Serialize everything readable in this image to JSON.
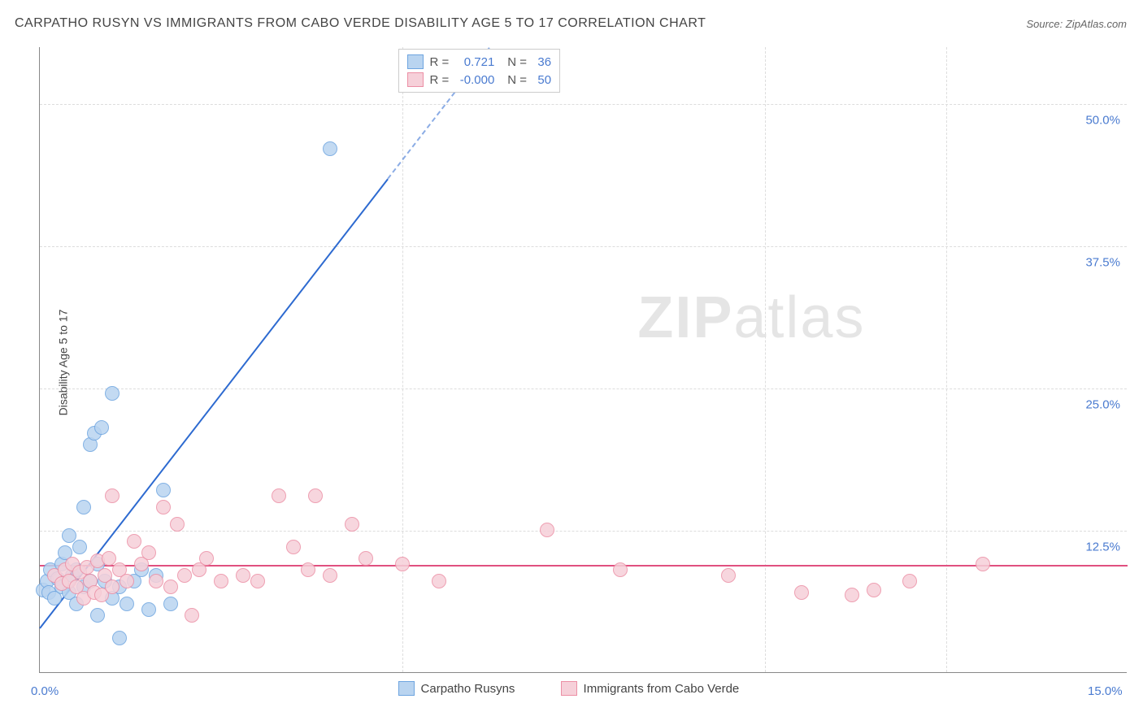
{
  "title": "CARPATHO RUSYN VS IMMIGRANTS FROM CABO VERDE DISABILITY AGE 5 TO 17 CORRELATION CHART",
  "source": "Source: ZipAtlas.com",
  "ylabel": "Disability Age 5 to 17",
  "watermark_a": "ZIP",
  "watermark_b": "atlas",
  "chart": {
    "type": "scatter",
    "xlim": [
      0,
      15
    ],
    "ylim": [
      0,
      55
    ],
    "xticks": [
      {
        "v": 0.0,
        "label": "0.0%"
      },
      {
        "v": 15.0,
        "label": "15.0%"
      }
    ],
    "xtick_minor": [
      5,
      10,
      12.5
    ],
    "yticks": [
      {
        "v": 12.5,
        "label": "12.5%"
      },
      {
        "v": 25.0,
        "label": "25.0%"
      },
      {
        "v": 37.5,
        "label": "37.5%"
      },
      {
        "v": 50.0,
        "label": "50.0%"
      }
    ],
    "grid_color": "#dddddd",
    "axis_color": "#888888",
    "background_color": "#ffffff",
    "marker_radius": 9,
    "marker_stroke_width": 1.5,
    "series": [
      {
        "name": "Carpatho Rusyns",
        "fill": "#b9d4f0",
        "stroke": "#6ea5e0",
        "trend_color": "#2d6ad0",
        "trend": {
          "x1": 0,
          "y1": 4.0,
          "x2": 6.2,
          "y2": 55.0,
          "dash_after_x": 4.8
        },
        "R": "0.721",
        "N": "36",
        "points": [
          [
            0.05,
            7.2
          ],
          [
            0.1,
            8.0
          ],
          [
            0.12,
            7.0
          ],
          [
            0.15,
            9.0
          ],
          [
            0.2,
            6.5
          ],
          [
            0.25,
            8.2
          ],
          [
            0.3,
            7.5
          ],
          [
            0.3,
            9.5
          ],
          [
            0.35,
            10.5
          ],
          [
            0.4,
            7.0
          ],
          [
            0.4,
            12.0
          ],
          [
            0.45,
            8.5
          ],
          [
            0.5,
            6.0
          ],
          [
            0.5,
            9.0
          ],
          [
            0.55,
            11.0
          ],
          [
            0.6,
            7.5
          ],
          [
            0.6,
            14.5
          ],
          [
            0.7,
            8.0
          ],
          [
            0.7,
            20.0
          ],
          [
            0.75,
            21.0
          ],
          [
            0.8,
            5.0
          ],
          [
            0.8,
            9.5
          ],
          [
            0.85,
            21.5
          ],
          [
            0.9,
            8.0
          ],
          [
            1.0,
            6.5
          ],
          [
            1.0,
            24.5
          ],
          [
            1.1,
            3.0
          ],
          [
            1.1,
            7.5
          ],
          [
            1.2,
            6.0
          ],
          [
            1.3,
            8.0
          ],
          [
            1.4,
            9.0
          ],
          [
            1.5,
            5.5
          ],
          [
            1.6,
            8.5
          ],
          [
            1.7,
            16.0
          ],
          [
            1.8,
            6.0
          ],
          [
            4.0,
            46.0
          ]
        ]
      },
      {
        "name": "Immigrants from Cabo Verde",
        "fill": "#f6d0d9",
        "stroke": "#ec8fa5",
        "trend_color": "#e05080",
        "trend": {
          "x1": 0,
          "y1": 9.5,
          "x2": 15,
          "y2": 9.5
        },
        "R": "-0.000",
        "N": "50",
        "points": [
          [
            0.2,
            8.5
          ],
          [
            0.3,
            7.8
          ],
          [
            0.35,
            9.0
          ],
          [
            0.4,
            8.0
          ],
          [
            0.45,
            9.5
          ],
          [
            0.5,
            7.5
          ],
          [
            0.55,
            8.8
          ],
          [
            0.6,
            6.5
          ],
          [
            0.65,
            9.2
          ],
          [
            0.7,
            8.0
          ],
          [
            0.75,
            7.0
          ],
          [
            0.8,
            9.8
          ],
          [
            0.85,
            6.8
          ],
          [
            0.9,
            8.5
          ],
          [
            0.95,
            10.0
          ],
          [
            1.0,
            15.5
          ],
          [
            1.0,
            7.5
          ],
          [
            1.1,
            9.0
          ],
          [
            1.2,
            8.0
          ],
          [
            1.3,
            11.5
          ],
          [
            1.4,
            9.5
          ],
          [
            1.5,
            10.5
          ],
          [
            1.6,
            8.0
          ],
          [
            1.7,
            14.5
          ],
          [
            1.8,
            7.5
          ],
          [
            1.9,
            13.0
          ],
          [
            2.0,
            8.5
          ],
          [
            2.1,
            5.0
          ],
          [
            2.2,
            9.0
          ],
          [
            2.3,
            10.0
          ],
          [
            2.5,
            8.0
          ],
          [
            2.8,
            8.5
          ],
          [
            3.0,
            8.0
          ],
          [
            3.3,
            15.5
          ],
          [
            3.5,
            11.0
          ],
          [
            3.7,
            9.0
          ],
          [
            3.8,
            15.5
          ],
          [
            4.0,
            8.5
          ],
          [
            4.3,
            13.0
          ],
          [
            4.5,
            10.0
          ],
          [
            5.0,
            9.5
          ],
          [
            5.5,
            8.0
          ],
          [
            7.0,
            12.5
          ],
          [
            8.0,
            9.0
          ],
          [
            9.5,
            8.5
          ],
          [
            10.5,
            7.0
          ],
          [
            11.2,
            6.8
          ],
          [
            11.5,
            7.2
          ],
          [
            12.0,
            8.0
          ],
          [
            13.0,
            9.5
          ]
        ]
      }
    ]
  },
  "legend_bottom": [
    {
      "swatch_fill": "#b9d4f0",
      "swatch_stroke": "#6ea5e0",
      "label": "Carpatho Rusyns"
    },
    {
      "swatch_fill": "#f6d0d9",
      "swatch_stroke": "#ec8fa5",
      "label": "Immigrants from Cabo Verde"
    }
  ]
}
